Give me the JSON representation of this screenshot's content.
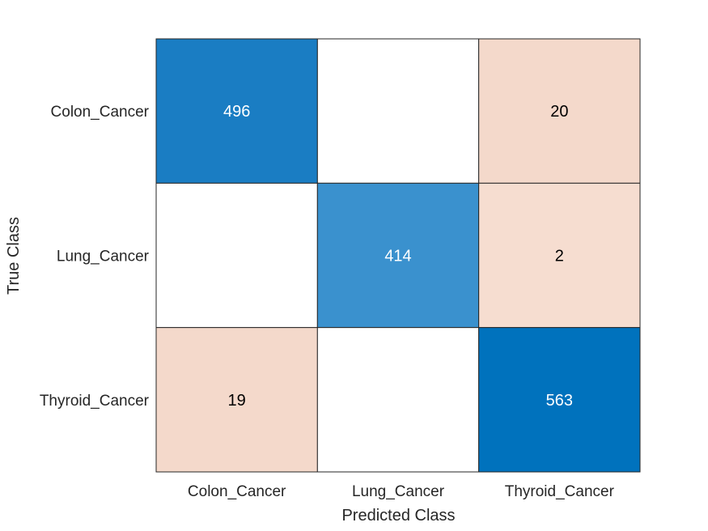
{
  "chart_data": {
    "type": "heatmap",
    "title": "",
    "xlabel": "Predicted Class",
    "ylabel": "True Class",
    "x_categories": [
      "Colon_Cancer",
      "Lung_Cancer",
      "Thyroid_Cancer"
    ],
    "y_categories": [
      "Colon_Cancer",
      "Lung_Cancer",
      "Thyroid_Cancer"
    ],
    "values": [
      [
        496,
        null,
        20
      ],
      [
        null,
        414,
        2
      ],
      [
        19,
        null,
        563
      ]
    ],
    "cell_colors": [
      [
        "#1a7dc3",
        "#ffffff",
        "#f4d9cb"
      ],
      [
        "#ffffff",
        "#3a91ce",
        "#f6ddd0"
      ],
      [
        "#f4d9cb",
        "#ffffff",
        "#0072bd"
      ]
    ],
    "text_colors": [
      [
        "#ffffff",
        "#000000",
        "#000000"
      ],
      [
        "#000000",
        "#ffffff",
        "#000000"
      ],
      [
        "#000000",
        "#000000",
        "#ffffff"
      ]
    ],
    "grid_color": "#262626",
    "legend": "none"
  }
}
